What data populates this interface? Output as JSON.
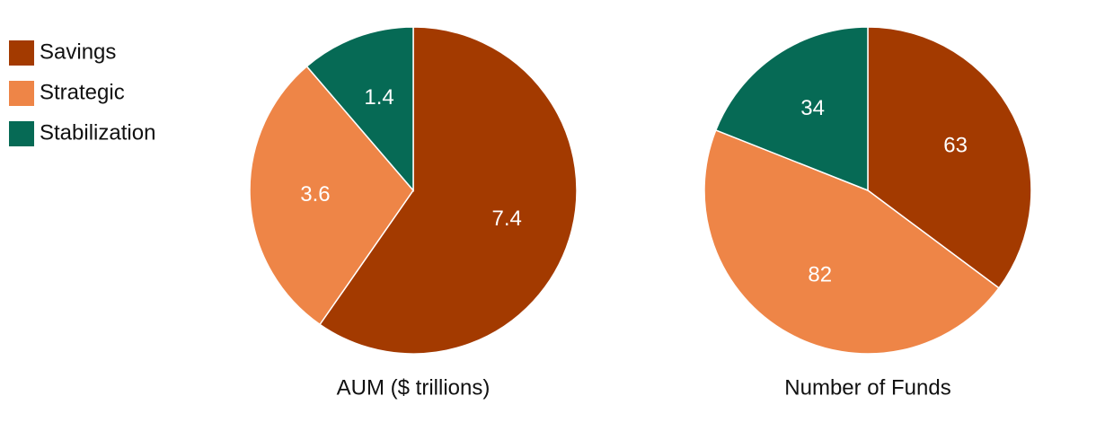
{
  "chart_data": [
    {
      "type": "pie",
      "title": "AUM ($ trillions)",
      "categories": [
        "Savings",
        "Strategic",
        "Stabilization"
      ],
      "values": [
        7.4,
        3.6,
        1.4
      ],
      "colors": [
        "#a33a00",
        "#ee8547",
        "#066a55"
      ]
    },
    {
      "type": "pie",
      "title": "Number of Funds",
      "categories": [
        "Savings",
        "Strategic",
        "Stabilization"
      ],
      "values": [
        63,
        82,
        34
      ],
      "colors": [
        "#a33a00",
        "#ee8547",
        "#066a55"
      ]
    }
  ]
}
